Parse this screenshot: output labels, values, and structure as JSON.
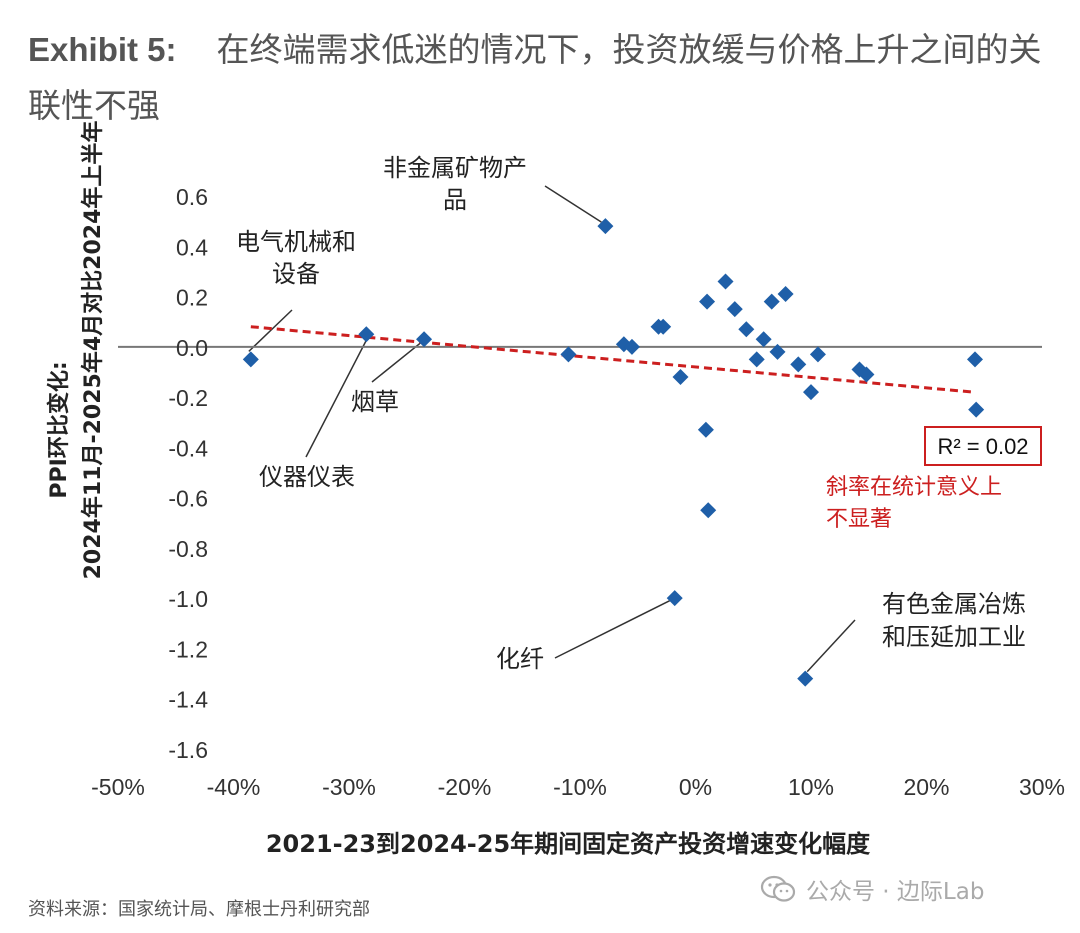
{
  "header": {
    "exhibit": "Exhibit 5:",
    "title": "在终端需求低迷的情况下，投资放缓与价格上升之间的关联性不强"
  },
  "footer": {
    "source": "资料来源：国家统计局、摩根士丹利研究部",
    "watermark": "公众号 · 边际Lab"
  },
  "colors": {
    "marker": "#1f5fa8",
    "trendline": "#cc1f1f",
    "zero_line": "#777777",
    "text": "#333333"
  },
  "chart_data": {
    "type": "scatter",
    "xlabel": "2021-23到2024-25年期间固定资产投资增速变化幅度",
    "ylabel_line1": "PPI环比变化:",
    "ylabel_line2": "2024年11月-2025年4月对比2024年上半年",
    "xlim": [
      -50,
      30
    ],
    "ylim": [
      -1.6,
      0.6
    ],
    "x_ticks": [
      -50,
      -40,
      -30,
      -20,
      -10,
      0,
      10,
      20,
      30
    ],
    "x_tick_labels": [
      "-50%",
      "-40%",
      "-30%",
      "-20%",
      "-10%",
      "0%",
      "10%",
      "20%",
      "30%"
    ],
    "y_ticks": [
      0.6,
      0.4,
      0.2,
      0.0,
      -0.2,
      -0.4,
      -0.6,
      -0.8,
      -1.0,
      -1.2,
      -1.4,
      -1.6
    ],
    "y_tick_labels": [
      "0.6",
      "0.4",
      "0.2",
      "0.0",
      "-0.2",
      "-0.4",
      "-0.6",
      "-0.8",
      "-1.0",
      "-1.2",
      "-1.4",
      "-1.6"
    ],
    "x_values_are_percent": true,
    "grid": false,
    "zero_line": true,
    "points": [
      {
        "x": -38.5,
        "y": -0.05
      },
      {
        "x": -28.5,
        "y": 0.05
      },
      {
        "x": -23.5,
        "y": 0.03
      },
      {
        "x": -11.0,
        "y": -0.03
      },
      {
        "x": -7.8,
        "y": 0.48
      },
      {
        "x": -6.2,
        "y": 0.01
      },
      {
        "x": -5.5,
        "y": 0.0
      },
      {
        "x": -3.2,
        "y": 0.08
      },
      {
        "x": -2.8,
        "y": 0.08
      },
      {
        "x": -1.8,
        "y": -1.0
      },
      {
        "x": -1.3,
        "y": -0.12
      },
      {
        "x": 0.9,
        "y": -0.33
      },
      {
        "x": 1.0,
        "y": 0.18
      },
      {
        "x": 1.1,
        "y": -0.65
      },
      {
        "x": 2.6,
        "y": 0.26
      },
      {
        "x": 3.4,
        "y": 0.15
      },
      {
        "x": 4.4,
        "y": 0.07
      },
      {
        "x": 5.3,
        "y": -0.05
      },
      {
        "x": 5.9,
        "y": 0.03
      },
      {
        "x": 6.6,
        "y": 0.18
      },
      {
        "x": 7.1,
        "y": -0.02
      },
      {
        "x": 7.8,
        "y": 0.21
      },
      {
        "x": 8.9,
        "y": -0.07
      },
      {
        "x": 9.5,
        "y": -1.32
      },
      {
        "x": 10.0,
        "y": -0.18
      },
      {
        "x": 10.6,
        "y": -0.03
      },
      {
        "x": 14.2,
        "y": -0.09
      },
      {
        "x": 14.8,
        "y": -0.11
      },
      {
        "x": 24.2,
        "y": -0.05
      },
      {
        "x": 24.3,
        "y": -0.25
      }
    ],
    "trendline": {
      "x": [
        -38.5,
        24.0
      ],
      "y": [
        0.08,
        -0.18
      ],
      "style": "dashed"
    },
    "r2_label": "R² = 0.02",
    "slope_note": [
      "斜率在统计意义上",
      "不显著"
    ],
    "annotations": [
      {
        "lines": [
          "非金属矿物产",
          "品"
        ],
        "point": [
          -7.8,
          0.48
        ]
      },
      {
        "lines": [
          "电气机械和",
          "设备"
        ],
        "point": [
          -38.5,
          -0.05
        ]
      },
      {
        "lines": [
          "烟草"
        ],
        "point": [
          -23.5,
          0.03
        ]
      },
      {
        "lines": [
          "仪器仪表"
        ],
        "point": [
          -28.5,
          0.05
        ]
      },
      {
        "lines": [
          "化纤"
        ],
        "point": [
          -1.8,
          -1.0
        ]
      },
      {
        "lines": [
          "有色金属冶炼",
          "和压延加工业"
        ],
        "point": [
          9.5,
          -1.32
        ]
      }
    ]
  }
}
